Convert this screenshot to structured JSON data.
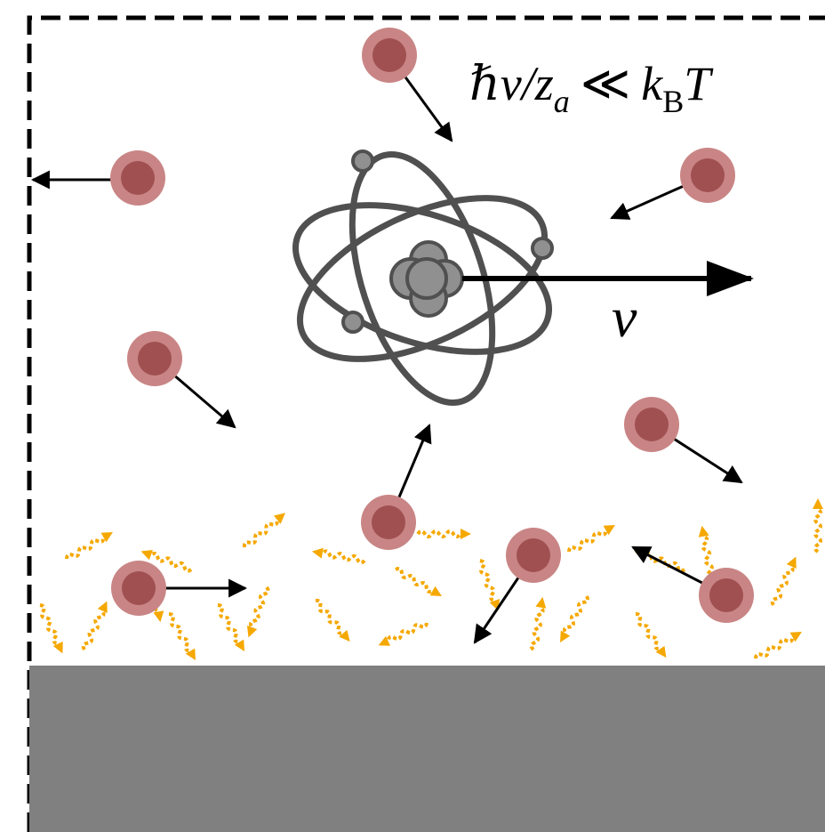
{
  "formula": {
    "lhs": "ℏv/z",
    "lhs_sub": "a",
    "relation": "≪",
    "rhs": "k",
    "rhs_sub": "B",
    "rhs_tail": "T"
  },
  "velocity_label": "v"
}
